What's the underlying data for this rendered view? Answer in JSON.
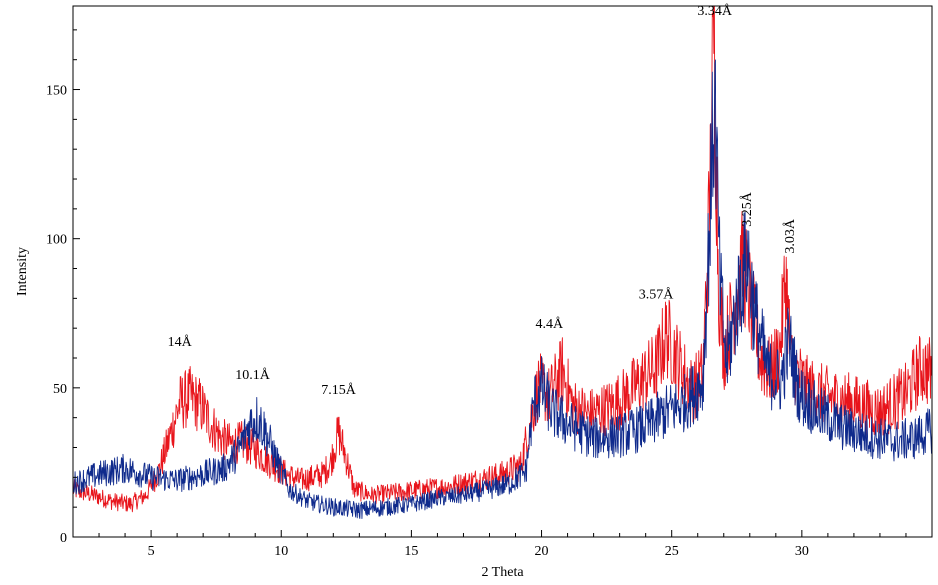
{
  "chart_data": {
    "type": "line",
    "title": "",
    "xlabel": "2 Theta",
    "ylabel": "Intensity",
    "xlim": [
      2,
      35
    ],
    "ylim": [
      0,
      178
    ],
    "grid": false,
    "x_ticks": [
      5,
      10,
      15,
      20,
      25,
      30
    ],
    "y_ticks": [
      0,
      50,
      100,
      150
    ],
    "series": [
      {
        "color": "#e8141b",
        "points": [
          [
            2.0,
            16
          ],
          [
            2.8,
            14
          ],
          [
            3.5,
            12
          ],
          [
            4.2,
            11
          ],
          [
            4.8,
            14
          ],
          [
            5.3,
            22
          ],
          [
            5.7,
            33
          ],
          [
            6.1,
            45
          ],
          [
            6.5,
            47
          ],
          [
            6.9,
            44
          ],
          [
            7.3,
            38
          ],
          [
            7.7,
            33
          ],
          [
            8.1,
            31
          ],
          [
            8.5,
            32
          ],
          [
            8.9,
            30
          ],
          [
            9.3,
            27
          ],
          [
            9.7,
            24
          ],
          [
            10.2,
            21
          ],
          [
            10.7,
            19
          ],
          [
            11.2,
            20
          ],
          [
            11.6,
            21
          ],
          [
            11.9,
            25
          ],
          [
            12.2,
            35
          ],
          [
            12.45,
            28
          ],
          [
            12.8,
            16
          ],
          [
            13.5,
            14
          ],
          [
            14.5,
            15
          ],
          [
            15.5,
            16
          ],
          [
            16.5,
            17
          ],
          [
            17.5,
            19
          ],
          [
            18.5,
            21
          ],
          [
            19.2,
            24
          ],
          [
            19.6,
            40
          ],
          [
            19.9,
            51
          ],
          [
            20.3,
            47
          ],
          [
            20.8,
            56
          ],
          [
            21.2,
            44
          ],
          [
            21.8,
            41
          ],
          [
            22.5,
            43
          ],
          [
            23.2,
            47
          ],
          [
            23.8,
            52
          ],
          [
            24.4,
            57
          ],
          [
            24.8,
            68
          ],
          [
            25.3,
            58
          ],
          [
            25.8,
            49
          ],
          [
            26.2,
            55
          ],
          [
            26.45,
            110
          ],
          [
            26.62,
            170
          ],
          [
            26.8,
            85
          ],
          [
            27.0,
            62
          ],
          [
            27.4,
            78
          ],
          [
            27.75,
            92
          ],
          [
            28.0,
            80
          ],
          [
            28.4,
            60
          ],
          [
            28.8,
            55
          ],
          [
            29.15,
            62
          ],
          [
            29.38,
            88
          ],
          [
            29.6,
            58
          ],
          [
            30.2,
            50
          ],
          [
            31.0,
            47
          ],
          [
            32.0,
            45
          ],
          [
            33.0,
            42
          ],
          [
            34.0,
            48
          ],
          [
            34.6,
            57
          ],
          [
            35.0,
            55
          ]
        ]
      },
      {
        "color": "#0f2a8c",
        "points": [
          [
            2.0,
            18
          ],
          [
            3.0,
            21
          ],
          [
            4.0,
            23
          ],
          [
            5.0,
            20
          ],
          [
            6.0,
            19
          ],
          [
            7.0,
            21
          ],
          [
            7.8,
            23
          ],
          [
            8.3,
            28
          ],
          [
            8.8,
            38
          ],
          [
            9.1,
            40
          ],
          [
            9.4,
            35
          ],
          [
            9.8,
            26
          ],
          [
            10.3,
            16
          ],
          [
            11.0,
            12
          ],
          [
            12.0,
            10
          ],
          [
            13.0,
            9
          ],
          [
            14.0,
            10
          ],
          [
            15.0,
            11
          ],
          [
            16.0,
            13
          ],
          [
            17.0,
            14
          ],
          [
            18.0,
            16
          ],
          [
            18.8,
            18
          ],
          [
            19.4,
            22
          ],
          [
            19.7,
            45
          ],
          [
            20.0,
            50
          ],
          [
            20.4,
            42
          ],
          [
            21.0,
            38
          ],
          [
            22.0,
            33
          ],
          [
            23.0,
            34
          ],
          [
            24.0,
            37
          ],
          [
            24.8,
            42
          ],
          [
            25.5,
            45
          ],
          [
            26.2,
            52
          ],
          [
            26.48,
            110
          ],
          [
            26.65,
            150
          ],
          [
            26.85,
            85
          ],
          [
            27.1,
            58
          ],
          [
            27.5,
            78
          ],
          [
            27.9,
            95
          ],
          [
            28.2,
            74
          ],
          [
            28.7,
            55
          ],
          [
            29.2,
            52
          ],
          [
            29.5,
            66
          ],
          [
            29.9,
            48
          ],
          [
            30.6,
            42
          ],
          [
            31.5,
            37
          ],
          [
            32.5,
            34
          ],
          [
            33.5,
            32
          ],
          [
            34.3,
            33
          ],
          [
            35.0,
            36
          ]
        ]
      }
    ],
    "annotations": [
      {
        "text": "14Å",
        "x": 6.1,
        "y": 64,
        "rotate": false
      },
      {
        "text": "10.1Å",
        "x": 8.9,
        "y": 53,
        "rotate": false
      },
      {
        "text": "7.15Å",
        "x": 12.2,
        "y": 48,
        "rotate": false
      },
      {
        "text": "4.4Å",
        "x": 20.3,
        "y": 70,
        "rotate": false
      },
      {
        "text": "3.57Å",
        "x": 24.4,
        "y": 80,
        "rotate": false
      },
      {
        "text": "3.34Å",
        "x": 26.65,
        "y": 175,
        "rotate": false
      },
      {
        "text": "3.25Å",
        "x": 28.05,
        "y": 104,
        "rotate": true
      },
      {
        "text": "3.03Å",
        "x": 29.7,
        "y": 95,
        "rotate": true
      }
    ]
  }
}
